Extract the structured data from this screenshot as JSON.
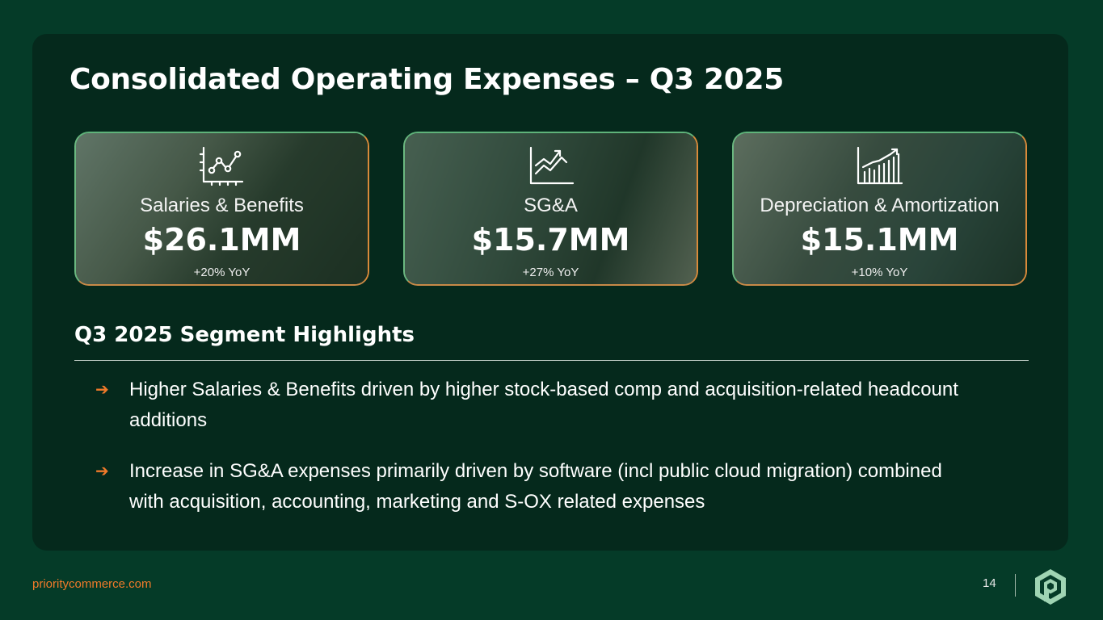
{
  "slide": {
    "title": "Consolidated Operating Expenses – Q3 2025",
    "colors": {
      "background": "#053b28",
      "panel": "#05291c",
      "accent": "#f07a2a"
    }
  },
  "cards": [
    {
      "icon": "scatter-chart-icon",
      "label": "Salaries & Benefits",
      "value": "$26.1MM",
      "yoy": "+20% YoY"
    },
    {
      "icon": "trend-up-chart-icon",
      "label": "SG&A",
      "value": "$15.7MM",
      "yoy": "+27% YoY"
    },
    {
      "icon": "bar-chart-growth-icon",
      "label": "Depreciation & Amortization",
      "value": "$15.1MM",
      "yoy": "+10% YoY"
    }
  ],
  "highlights": {
    "heading": "Q3 2025 Segment Highlights",
    "bullet_glyph": "➔",
    "items": [
      "Higher Salaries & Benefits driven by higher stock-based comp and acquisition-related headcount additions",
      "Increase in SG&A expenses primarily driven by software (incl public cloud migration) combined with acquisition, accounting, marketing and S-OX related expenses"
    ]
  },
  "footer": {
    "website": "prioritycommerce.com",
    "page_number": "14",
    "logo_icon": "priority-logo-icon"
  }
}
